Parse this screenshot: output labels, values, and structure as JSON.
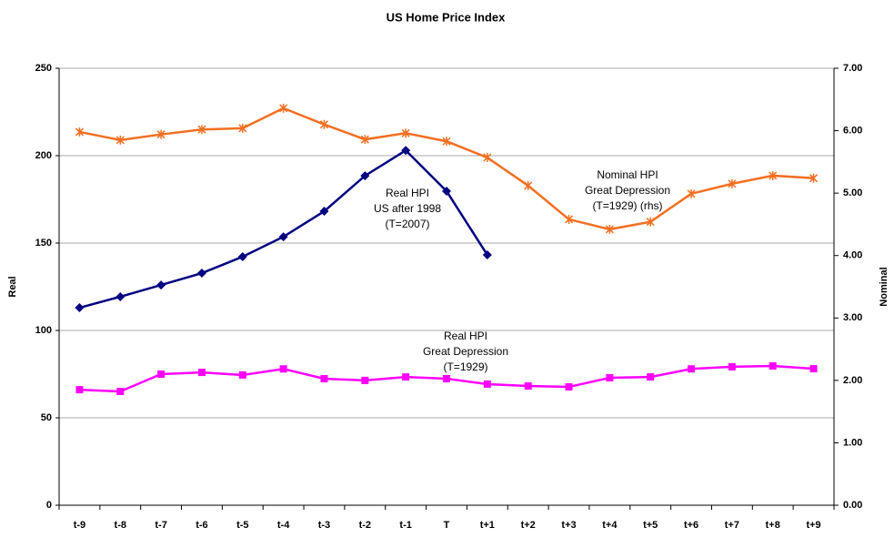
{
  "chart_data": {
    "type": "line",
    "title": "US Home Price Index",
    "categories": [
      "t-9",
      "t-8",
      "t-7",
      "t-6",
      "t-5",
      "t-4",
      "t-3",
      "t-2",
      "t-1",
      "T",
      "t+1",
      "t+2",
      "t+3",
      "t+4",
      "t+5",
      "t+6",
      "t+7",
      "t+8",
      "t+9"
    ],
    "ylabel": "Real",
    "y2label": "Nominal",
    "ylim": [
      0,
      250
    ],
    "yticks": [
      0,
      50,
      100,
      150,
      200,
      250
    ],
    "y2lim": [
      0,
      7
    ],
    "y2ticks": [
      {
        "value": 0,
        "label": "0.00"
      },
      {
        "value": 1,
        "label": "1.00"
      },
      {
        "value": 2,
        "label": "2.00"
      },
      {
        "value": 3,
        "label": "3.00"
      },
      {
        "value": 4,
        "label": "4.00"
      },
      {
        "value": 5,
        "label": "5.00"
      },
      {
        "value": 6,
        "label": "6.00"
      },
      {
        "value": 7,
        "label": "7.00"
      }
    ],
    "grid": true,
    "series": [
      {
        "name": "Real HPI Great Depression",
        "color": "#ff00ff",
        "marker": "square",
        "values": [
          66.1,
          65.1,
          75,
          76,
          74.5,
          78,
          72.4,
          71.4,
          73.4,
          72.4,
          69.3,
          68.2,
          67.7,
          72.9,
          73.4,
          78,
          79.2,
          79.7,
          78.1
        ]
      },
      {
        "name": "Real HPI US after 1998",
        "color": "#000080",
        "marker": "diamond",
        "values": [
          113,
          119.3,
          126,
          132.8,
          142.2,
          153.6,
          168.2,
          188.5,
          203,
          179.7,
          143.2,
          null,
          null,
          null,
          null,
          null,
          null,
          null,
          null
        ]
      },
      {
        "name": "Nominal HPI Great Depression",
        "color": "#f36f21",
        "marker": "star",
        "axis": "y2",
        "values": [
          5.98,
          5.85,
          5.94,
          6.02,
          6.04,
          6.36,
          6.1,
          5.86,
          5.96,
          5.83,
          5.57,
          5.12,
          4.58,
          4.42,
          4.54,
          4.99,
          5.15,
          5.28,
          5.24
        ]
      }
    ],
    "annotations": [
      [
        "Real HPI",
        "US after 1998",
        "(T=2007)"
      ],
      [
        "Nominal HPI",
        "Great Depression",
        "(T=1929) (rhs)"
      ],
      [
        "Real HPI",
        "Great Depression",
        "(T=1929)"
      ]
    ]
  }
}
